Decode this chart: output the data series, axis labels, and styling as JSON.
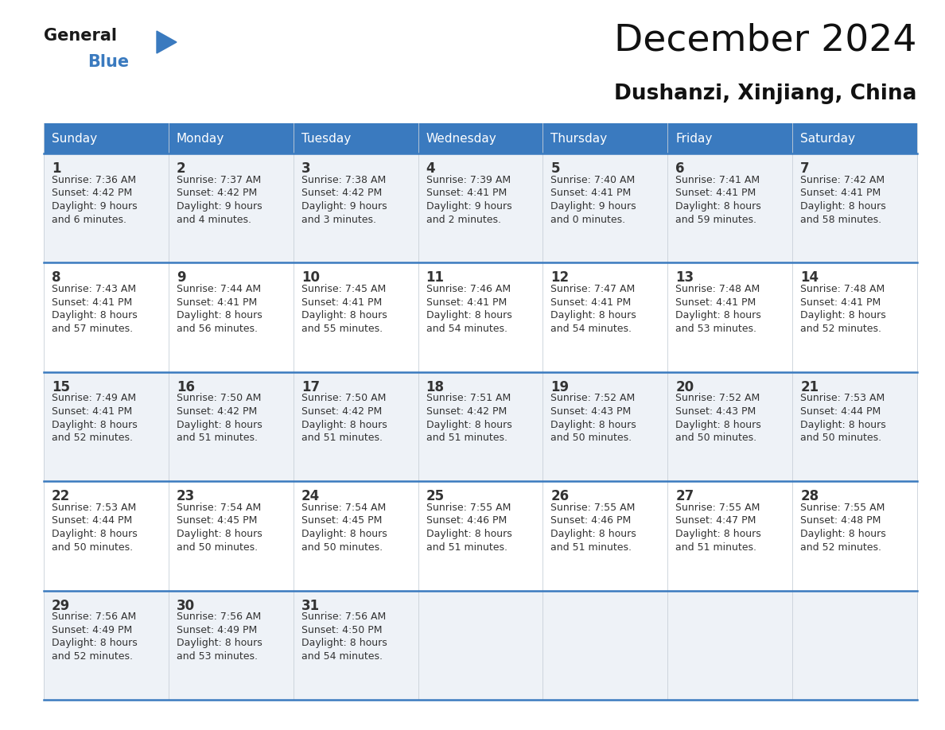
{
  "title": "December 2024",
  "subtitle": "Dushanzi, Xinjiang, China",
  "header_bg": "#3a7abf",
  "header_text": "#ffffff",
  "day_names": [
    "Sunday",
    "Monday",
    "Tuesday",
    "Wednesday",
    "Thursday",
    "Friday",
    "Saturday"
  ],
  "row_bg_even": "#eef2f7",
  "row_bg_odd": "#ffffff",
  "cell_border_color": "#3a7abf",
  "text_color": "#333333",
  "logo_general_color": "#1a1a1a",
  "logo_blue_color": "#3a7abf",
  "logo_triangle_color": "#3a7abf",
  "days": [
    {
      "day": 1,
      "col": 0,
      "row": 0,
      "sunrise": "7:36 AM",
      "sunset": "4:42 PM",
      "daylight": "9 hours and 6 minutes."
    },
    {
      "day": 2,
      "col": 1,
      "row": 0,
      "sunrise": "7:37 AM",
      "sunset": "4:42 PM",
      "daylight": "9 hours and 4 minutes."
    },
    {
      "day": 3,
      "col": 2,
      "row": 0,
      "sunrise": "7:38 AM",
      "sunset": "4:42 PM",
      "daylight": "9 hours and 3 minutes."
    },
    {
      "day": 4,
      "col": 3,
      "row": 0,
      "sunrise": "7:39 AM",
      "sunset": "4:41 PM",
      "daylight": "9 hours and 2 minutes."
    },
    {
      "day": 5,
      "col": 4,
      "row": 0,
      "sunrise": "7:40 AM",
      "sunset": "4:41 PM",
      "daylight": "9 hours and 0 minutes."
    },
    {
      "day": 6,
      "col": 5,
      "row": 0,
      "sunrise": "7:41 AM",
      "sunset": "4:41 PM",
      "daylight": "8 hours and 59 minutes."
    },
    {
      "day": 7,
      "col": 6,
      "row": 0,
      "sunrise": "7:42 AM",
      "sunset": "4:41 PM",
      "daylight": "8 hours and 58 minutes."
    },
    {
      "day": 8,
      "col": 0,
      "row": 1,
      "sunrise": "7:43 AM",
      "sunset": "4:41 PM",
      "daylight": "8 hours and 57 minutes."
    },
    {
      "day": 9,
      "col": 1,
      "row": 1,
      "sunrise": "7:44 AM",
      "sunset": "4:41 PM",
      "daylight": "8 hours and 56 minutes."
    },
    {
      "day": 10,
      "col": 2,
      "row": 1,
      "sunrise": "7:45 AM",
      "sunset": "4:41 PM",
      "daylight": "8 hours and 55 minutes."
    },
    {
      "day": 11,
      "col": 3,
      "row": 1,
      "sunrise": "7:46 AM",
      "sunset": "4:41 PM",
      "daylight": "8 hours and 54 minutes."
    },
    {
      "day": 12,
      "col": 4,
      "row": 1,
      "sunrise": "7:47 AM",
      "sunset": "4:41 PM",
      "daylight": "8 hours and 54 minutes."
    },
    {
      "day": 13,
      "col": 5,
      "row": 1,
      "sunrise": "7:48 AM",
      "sunset": "4:41 PM",
      "daylight": "8 hours and 53 minutes."
    },
    {
      "day": 14,
      "col": 6,
      "row": 1,
      "sunrise": "7:48 AM",
      "sunset": "4:41 PM",
      "daylight": "8 hours and 52 minutes."
    },
    {
      "day": 15,
      "col": 0,
      "row": 2,
      "sunrise": "7:49 AM",
      "sunset": "4:41 PM",
      "daylight": "8 hours and 52 minutes."
    },
    {
      "day": 16,
      "col": 1,
      "row": 2,
      "sunrise": "7:50 AM",
      "sunset": "4:42 PM",
      "daylight": "8 hours and 51 minutes."
    },
    {
      "day": 17,
      "col": 2,
      "row": 2,
      "sunrise": "7:50 AM",
      "sunset": "4:42 PM",
      "daylight": "8 hours and 51 minutes."
    },
    {
      "day": 18,
      "col": 3,
      "row": 2,
      "sunrise": "7:51 AM",
      "sunset": "4:42 PM",
      "daylight": "8 hours and 51 minutes."
    },
    {
      "day": 19,
      "col": 4,
      "row": 2,
      "sunrise": "7:52 AM",
      "sunset": "4:43 PM",
      "daylight": "8 hours and 50 minutes."
    },
    {
      "day": 20,
      "col": 5,
      "row": 2,
      "sunrise": "7:52 AM",
      "sunset": "4:43 PM",
      "daylight": "8 hours and 50 minutes."
    },
    {
      "day": 21,
      "col": 6,
      "row": 2,
      "sunrise": "7:53 AM",
      "sunset": "4:44 PM",
      "daylight": "8 hours and 50 minutes."
    },
    {
      "day": 22,
      "col": 0,
      "row": 3,
      "sunrise": "7:53 AM",
      "sunset": "4:44 PM",
      "daylight": "8 hours and 50 minutes."
    },
    {
      "day": 23,
      "col": 1,
      "row": 3,
      "sunrise": "7:54 AM",
      "sunset": "4:45 PM",
      "daylight": "8 hours and 50 minutes."
    },
    {
      "day": 24,
      "col": 2,
      "row": 3,
      "sunrise": "7:54 AM",
      "sunset": "4:45 PM",
      "daylight": "8 hours and 50 minutes."
    },
    {
      "day": 25,
      "col": 3,
      "row": 3,
      "sunrise": "7:55 AM",
      "sunset": "4:46 PM",
      "daylight": "8 hours and 51 minutes."
    },
    {
      "day": 26,
      "col": 4,
      "row": 3,
      "sunrise": "7:55 AM",
      "sunset": "4:46 PM",
      "daylight": "8 hours and 51 minutes."
    },
    {
      "day": 27,
      "col": 5,
      "row": 3,
      "sunrise": "7:55 AM",
      "sunset": "4:47 PM",
      "daylight": "8 hours and 51 minutes."
    },
    {
      "day": 28,
      "col": 6,
      "row": 3,
      "sunrise": "7:55 AM",
      "sunset": "4:48 PM",
      "daylight": "8 hours and 52 minutes."
    },
    {
      "day": 29,
      "col": 0,
      "row": 4,
      "sunrise": "7:56 AM",
      "sunset": "4:49 PM",
      "daylight": "8 hours and 52 minutes."
    },
    {
      "day": 30,
      "col": 1,
      "row": 4,
      "sunrise": "7:56 AM",
      "sunset": "4:49 PM",
      "daylight": "8 hours and 53 minutes."
    },
    {
      "day": 31,
      "col": 2,
      "row": 4,
      "sunrise": "7:56 AM",
      "sunset": "4:50 PM",
      "daylight": "8 hours and 54 minutes."
    }
  ],
  "fig_width": 11.88,
  "fig_height": 9.18,
  "dpi": 100
}
